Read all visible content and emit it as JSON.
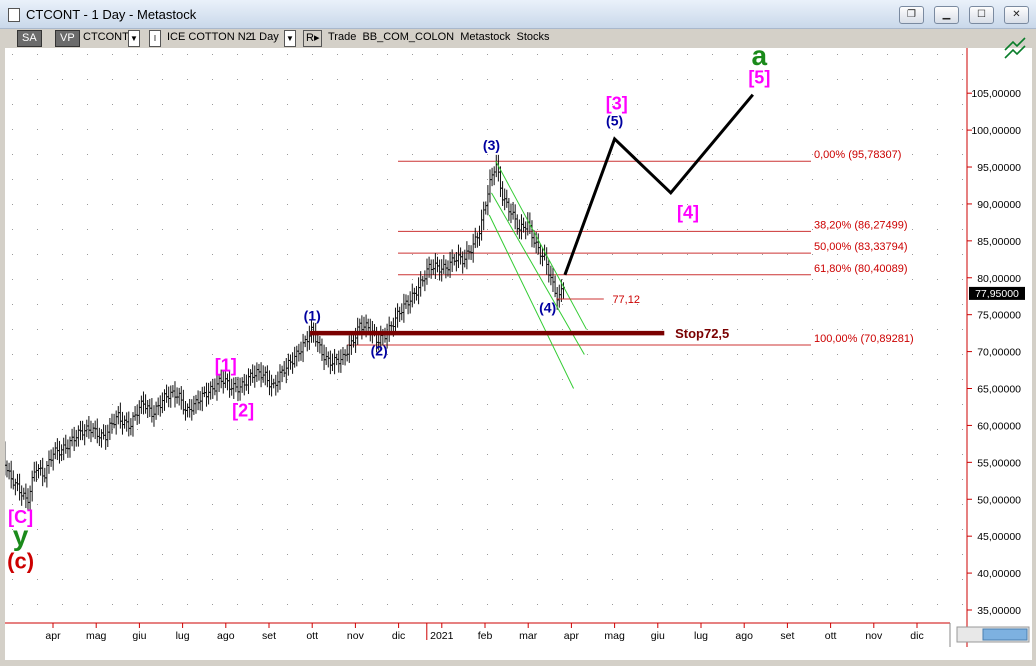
{
  "window": {
    "title": "CTCONT - 1 Day - Metastock",
    "buttons": [
      "restore",
      "minimize",
      "maximize",
      "close"
    ]
  },
  "toolbar": {
    "sa": "SA",
    "vp": "VP",
    "symbol": "CTCONT",
    "i_label": "I",
    "instrument": "ICE COTTON N2",
    "period": "1 Day",
    "r_label": "R",
    "rest": "Trade  BB_COM_COLON  Metastock  Stocks"
  },
  "chart_data": {
    "type": "candlestick",
    "title": "",
    "ylabel": "",
    "xlabel": "",
    "ylim": [
      32.0,
      113.5
    ],
    "y_ticks": [
      35,
      40,
      45,
      50,
      55,
      60,
      65,
      70,
      75,
      80,
      85,
      90,
      95,
      100,
      105
    ],
    "y_tick_labels": [
      "35,00000",
      "40,00000",
      "45,00000",
      "50,00000",
      "55,00000",
      "60,00000",
      "65,00000",
      "70,00000",
      "75,00000",
      "80,00000",
      "85,00000",
      "90,00000",
      "95,00000",
      "100,00000",
      "105,00000"
    ],
    "x_labels": [
      {
        "label": "apr",
        "t": 1.6
      },
      {
        "label": "mag",
        "t": 2.6
      },
      {
        "label": "giu",
        "t": 3.6
      },
      {
        "label": "lug",
        "t": 4.6
      },
      {
        "label": "ago",
        "t": 5.6
      },
      {
        "label": "set",
        "t": 6.6
      },
      {
        "label": "ott",
        "t": 7.6
      },
      {
        "label": "nov",
        "t": 8.6
      },
      {
        "label": "dic",
        "t": 9.6
      },
      {
        "label": "2021",
        "t": 10.6
      },
      {
        "label": "feb",
        "t": 11.6
      },
      {
        "label": "mar",
        "t": 12.6
      },
      {
        "label": "apr",
        "t": 13.6
      },
      {
        "label": "mag",
        "t": 14.6
      },
      {
        "label": "giu",
        "t": 15.6
      },
      {
        "label": "lug",
        "t": 16.6
      },
      {
        "label": "ago",
        "t": 17.6
      },
      {
        "label": "set",
        "t": 18.6
      },
      {
        "label": "ott",
        "t": 19.6
      },
      {
        "label": "nov",
        "t": 20.6
      },
      {
        "label": "dic",
        "t": 21.6
      }
    ],
    "price_path": [
      [
        0.0,
        63
      ],
      [
        0.3,
        60
      ],
      [
        0.55,
        54
      ],
      [
        0.8,
        51
      ],
      [
        1.0,
        49.5
      ],
      [
        1.2,
        55
      ],
      [
        1.4,
        53
      ],
      [
        1.6,
        56
      ],
      [
        1.9,
        57.5
      ],
      [
        2.2,
        58.5
      ],
      [
        2.5,
        60
      ],
      [
        2.8,
        58
      ],
      [
        3.1,
        61.5
      ],
      [
        3.4,
        60
      ],
      [
        3.7,
        63
      ],
      [
        3.9,
        62
      ],
      [
        4.2,
        63.5
      ],
      [
        4.5,
        64.5
      ],
      [
        4.7,
        62
      ],
      [
        4.9,
        62.5
      ],
      [
        5.2,
        65
      ],
      [
        5.5,
        66
      ],
      [
        5.7,
        65
      ],
      [
        5.9,
        65.5
      ],
      [
        6.2,
        66.5
      ],
      [
        6.5,
        67
      ],
      [
        6.7,
        65.5
      ],
      [
        7.0,
        67.5
      ],
      [
        7.3,
        70.5
      ],
      [
        7.6,
        72.5
      ],
      [
        7.8,
        70
      ],
      [
        8.0,
        69
      ],
      [
        8.3,
        68.5
      ],
      [
        8.5,
        71
      ],
      [
        8.7,
        74
      ],
      [
        8.9,
        73
      ],
      [
        9.1,
        71.2
      ],
      [
        9.4,
        73.5
      ],
      [
        9.7,
        75.5
      ],
      [
        10.0,
        78.5
      ],
      [
        10.3,
        81
      ],
      [
        10.6,
        81.5
      ],
      [
        10.9,
        82.5
      ],
      [
        11.1,
        82
      ],
      [
        11.3,
        84.5
      ],
      [
        11.5,
        87
      ],
      [
        11.7,
        92
      ],
      [
        11.85,
        95.5
      ],
      [
        12.0,
        91.5
      ],
      [
        12.2,
        89
      ],
      [
        12.4,
        86
      ],
      [
        12.6,
        87.5
      ],
      [
        12.8,
        84.5
      ],
      [
        13.0,
        82
      ],
      [
        13.15,
        79
      ],
      [
        13.3,
        77.2
      ],
      [
        13.45,
        80.3
      ]
    ],
    "projection": [
      [
        13.45,
        80.4
      ],
      [
        14.6,
        98.8
      ],
      [
        15.9,
        91.5
      ],
      [
        17.8,
        104.8
      ]
    ],
    "fib_levels": [
      {
        "label": "0,00% (95,78307)",
        "value": 95.78307
      },
      {
        "label": "38,20% (86,27499)",
        "value": 86.27499
      },
      {
        "label": "50,00% (83,33794)",
        "value": 83.33794
      },
      {
        "label": "61,80% (80,40089)",
        "value": 80.40089
      },
      {
        "label": "100,00% (70,89281)",
        "value": 70.89281
      }
    ],
    "stop": {
      "label": "Stop72,5",
      "value": 72.5
    },
    "low_marker": {
      "label": "77,12",
      "value": 77.12
    },
    "current_price": {
      "label": "77,95000",
      "value": 77.95
    },
    "wave_labels": [
      {
        "text": "(3)",
        "t": 11.75,
        "v": 97.3,
        "color": "#0000a0",
        "size": 14
      },
      {
        "text": "(1)",
        "t": 7.6,
        "v": 74.2,
        "color": "#0000a0",
        "size": 14
      },
      {
        "text": "(2)",
        "t": 9.15,
        "v": 69.5,
        "color": "#0000a0",
        "size": 14
      },
      {
        "text": "(4)",
        "t": 13.05,
        "v": 75.3,
        "color": "#0000a0",
        "size": 14
      },
      {
        "text": "(5)",
        "t": 14.6,
        "v": 100.6,
        "color": "#0000a0",
        "size": 14
      },
      {
        "text": "[1]",
        "t": 5.6,
        "v": 67.3,
        "color": "#ff00ff",
        "size": 18
      },
      {
        "text": "[2]",
        "t": 6.0,
        "v": 61.2,
        "color": "#ff00ff",
        "size": 18
      },
      {
        "text": "[3]",
        "t": 14.65,
        "v": 102.8,
        "color": "#ff00ff",
        "size": 18
      },
      {
        "text": "[4]",
        "t": 16.3,
        "v": 88.0,
        "color": "#ff00ff",
        "size": 18
      },
      {
        "text": "[5]",
        "t": 17.95,
        "v": 106.3,
        "color": "#ff00ff",
        "size": 18
      },
      {
        "text": "a",
        "t": 17.95,
        "v": 108.8,
        "color": "#1a8a1a",
        "size": 28
      },
      {
        "text": "[C]",
        "t": 0.85,
        "v": 46.8,
        "color": "#ff00ff",
        "size": 18
      },
      {
        "text": "y",
        "t": 0.85,
        "v": 43.8,
        "color": "#1a8a1a",
        "size": 28
      },
      {
        "text": "(c)",
        "t": 0.85,
        "v": 40.6,
        "color": "#cc0000",
        "size": 22
      }
    ]
  }
}
